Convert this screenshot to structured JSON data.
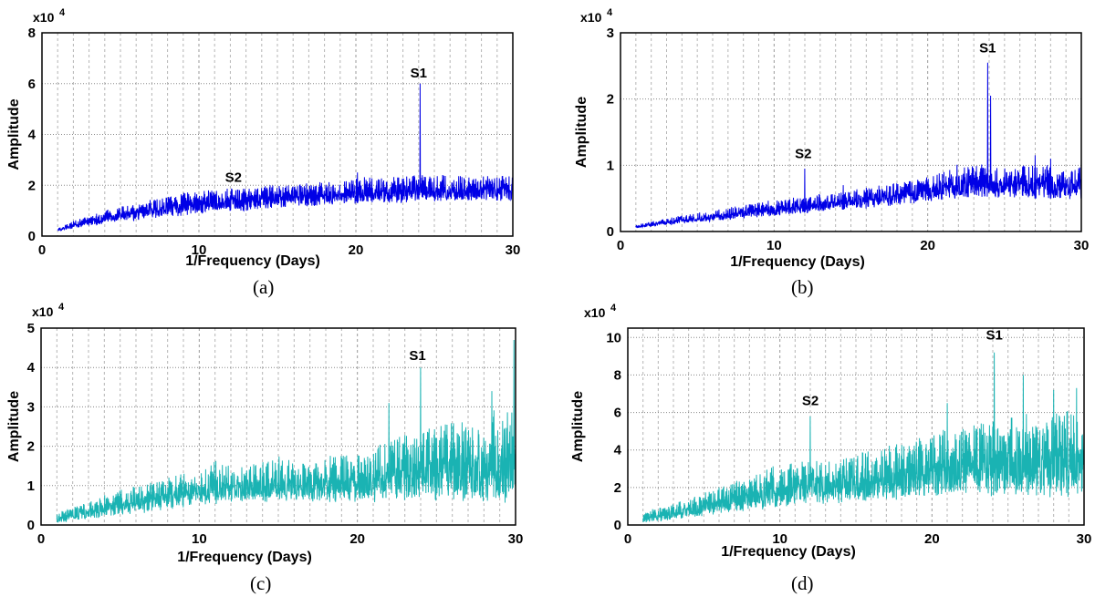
{
  "figure": {
    "captions": [
      "(a)",
      "(b)",
      "(c)",
      "(d)"
    ]
  },
  "chart_data": [
    {
      "type": "line",
      "panel": "(a)",
      "xlabel": "1/Frequency (Days)",
      "ylabel": "Amplitude",
      "exponent_label": "x10",
      "exponent_power": "4",
      "xlim": [
        0,
        30
      ],
      "ylim": [
        0,
        8
      ],
      "xticks": [
        "0",
        "10",
        "20",
        "30"
      ],
      "yticks": [
        "0",
        "2",
        "4",
        "6",
        "8"
      ],
      "grid": true,
      "color": "#0000e6",
      "series": [
        {
          "x_range": [
            1,
            30
          ],
          "x": [
            1,
            2,
            3,
            4,
            5,
            6,
            7,
            8,
            9,
            10,
            11,
            12,
            13,
            14,
            15,
            16,
            17,
            18,
            19,
            20,
            21,
            22,
            23,
            24,
            25,
            26,
            27,
            28,
            29,
            30
          ],
          "y_base": [
            0.2,
            0.3,
            0.4,
            0.5,
            0.6,
            0.6,
            0.7,
            0.8,
            0.8,
            0.9,
            0.9,
            1.0,
            1.0,
            1.1,
            1.1,
            1.2,
            1.2,
            1.2,
            1.3,
            1.3,
            1.3,
            1.3,
            1.3,
            1.4,
            1.4,
            1.4,
            1.4,
            1.4,
            1.4,
            1.4
          ],
          "y_envelope": [
            0.3,
            0.6,
            0.8,
            1.0,
            1.2,
            1.3,
            1.5,
            1.6,
            1.7,
            1.8,
            1.8,
            1.9,
            1.9,
            2.0,
            2.0,
            2.0,
            2.1,
            2.1,
            2.1,
            2.3,
            2.3,
            2.3,
            2.4,
            2.4,
            2.4,
            2.4,
            2.4,
            2.4,
            2.4,
            2.4
          ]
        }
      ],
      "peaks": [
        {
          "label": "S1",
          "x": 24.1,
          "y": 6.0
        },
        {
          "label": "S2",
          "x": 12.0,
          "y": 1.6
        },
        {
          "label": "",
          "x": 20.1,
          "y": 2.5
        },
        {
          "label": "",
          "x": 15.5,
          "y": 1.9
        },
        {
          "label": "",
          "x": 29.0,
          "y": 2.3
        }
      ],
      "annotations": [
        {
          "text": "S1",
          "x": 24.0,
          "y": 6.1
        },
        {
          "text": "S2",
          "x": 12.2,
          "y": 2.0
        }
      ]
    },
    {
      "type": "line",
      "panel": "(b)",
      "xlabel": "1/Frequency (Days)",
      "ylabel": "Amplitude",
      "exponent_label": "x10",
      "exponent_power": "4",
      "xlim": [
        0,
        30
      ],
      "ylim": [
        0,
        3
      ],
      "xticks": [
        "0",
        "10",
        "20",
        "30"
      ],
      "yticks": [
        "0",
        "1",
        "2",
        "3"
      ],
      "grid": true,
      "color": "#0000e6",
      "series": [
        {
          "x_range": [
            1,
            30
          ],
          "x": [
            1,
            2,
            3,
            4,
            5,
            6,
            7,
            8,
            9,
            10,
            11,
            12,
            13,
            14,
            15,
            16,
            17,
            18,
            19,
            20,
            21,
            22,
            23,
            24,
            25,
            26,
            27,
            28,
            29,
            30
          ],
          "y_base": [
            0.05,
            0.08,
            0.1,
            0.12,
            0.14,
            0.16,
            0.18,
            0.2,
            0.22,
            0.24,
            0.26,
            0.28,
            0.3,
            0.32,
            0.34,
            0.36,
            0.38,
            0.4,
            0.42,
            0.45,
            0.48,
            0.5,
            0.52,
            0.5,
            0.5,
            0.5,
            0.5,
            0.5,
            0.5,
            0.5
          ],
          "y_envelope": [
            0.1,
            0.15,
            0.2,
            0.24,
            0.28,
            0.32,
            0.36,
            0.4,
            0.44,
            0.47,
            0.5,
            0.53,
            0.56,
            0.6,
            0.62,
            0.66,
            0.7,
            0.74,
            0.78,
            0.82,
            0.9,
            1.0,
            1.0,
            1.0,
            1.0,
            1.0,
            1.0,
            1.0,
            0.9,
            1.0
          ]
        }
      ],
      "peaks": [
        {
          "label": "S1",
          "x": 23.9,
          "y": 2.55
        },
        {
          "label": "",
          "x": 24.1,
          "y": 2.05
        },
        {
          "label": "S2",
          "x": 12.0,
          "y": 0.95
        },
        {
          "label": "",
          "x": 14.5,
          "y": 0.7
        },
        {
          "label": "",
          "x": 27.0,
          "y": 1.15
        },
        {
          "label": "",
          "x": 28.0,
          "y": 1.1
        },
        {
          "label": "",
          "x": 30.0,
          "y": 1.1
        }
      ],
      "annotations": [
        {
          "text": "S1",
          "x": 23.9,
          "y": 2.65
        },
        {
          "text": "S2",
          "x": 11.9,
          "y": 1.05
        }
      ]
    },
    {
      "type": "line",
      "panel": "(c)",
      "xlabel": "1/Frequency (Days)",
      "ylabel": "Amplitude",
      "exponent_label": "x10",
      "exponent_power": "4",
      "xlim": [
        0,
        30
      ],
      "ylim": [
        0,
        5
      ],
      "xticks": [
        "0",
        "10",
        "20",
        "30"
      ],
      "yticks": [
        "0",
        "1",
        "2",
        "3",
        "4",
        "5"
      ],
      "grid": true,
      "color": "#1ab3b3",
      "series": [
        {
          "x_range": [
            1,
            30
          ],
          "x": [
            1,
            2,
            3,
            4,
            5,
            6,
            7,
            8,
            9,
            10,
            11,
            12,
            13,
            14,
            15,
            16,
            17,
            18,
            19,
            20,
            21,
            22,
            23,
            24,
            25,
            26,
            27,
            28,
            29,
            30
          ],
          "y_base": [
            0.05,
            0.1,
            0.15,
            0.2,
            0.25,
            0.3,
            0.35,
            0.4,
            0.45,
            0.5,
            0.55,
            0.6,
            0.6,
            0.6,
            0.6,
            0.6,
            0.6,
            0.6,
            0.6,
            0.6,
            0.6,
            0.6,
            0.6,
            0.6,
            0.6,
            0.6,
            0.6,
            0.6,
            0.6,
            0.6
          ],
          "y_envelope": [
            0.3,
            0.45,
            0.6,
            0.75,
            0.9,
            1.0,
            1.1,
            1.2,
            1.3,
            1.4,
            1.6,
            1.5,
            1.5,
            1.6,
            1.8,
            1.6,
            1.6,
            1.8,
            1.8,
            1.8,
            1.9,
            2.2,
            2.3,
            2.4,
            2.5,
            2.6,
            2.7,
            2.8,
            2.9,
            3.0
          ]
        }
      ],
      "peaks": [
        {
          "label": "S1",
          "x": 24.0,
          "y": 4.0
        },
        {
          "label": "",
          "x": 29.9,
          "y": 4.7
        },
        {
          "label": "",
          "x": 28.5,
          "y": 3.4
        },
        {
          "label": "",
          "x": 22.0,
          "y": 3.1
        }
      ],
      "annotations": [
        {
          "text": "S1",
          "x": 23.8,
          "y": 4.1
        }
      ]
    },
    {
      "type": "line",
      "panel": "(d)",
      "xlabel": "1/Frequency (Days)",
      "ylabel": "Amplitude",
      "exponent_label": "x10",
      "exponent_power": "4",
      "xlim": [
        0,
        30
      ],
      "ylim": [
        0,
        10.5
      ],
      "xticks": [
        "0",
        "10",
        "20",
        "30"
      ],
      "yticks": [
        "0",
        "2",
        "4",
        "6",
        "8",
        "10"
      ],
      "grid": true,
      "color": "#1ab3b3",
      "series": [
        {
          "x_range": [
            1,
            30
          ],
          "x": [
            1,
            2,
            3,
            4,
            5,
            6,
            7,
            8,
            9,
            10,
            11,
            12,
            13,
            14,
            15,
            16,
            17,
            18,
            19,
            20,
            21,
            22,
            23,
            24,
            25,
            26,
            27,
            28,
            29,
            30
          ],
          "y_base": [
            0.1,
            0.2,
            0.3,
            0.4,
            0.5,
            0.6,
            0.7,
            0.8,
            0.9,
            1.0,
            1.1,
            1.2,
            1.2,
            1.2,
            1.3,
            1.3,
            1.4,
            1.4,
            1.5,
            1.5,
            1.6,
            1.6,
            1.6,
            1.6,
            1.6,
            1.6,
            1.6,
            1.6,
            1.6,
            1.6
          ],
          "y_envelope": [
            0.7,
            0.9,
            1.1,
            1.4,
            1.7,
            2.0,
            2.3,
            2.6,
            2.9,
            3.2,
            3.3,
            3.4,
            3.5,
            3.6,
            3.8,
            4.0,
            4.2,
            4.4,
            4.6,
            4.8,
            5.0,
            5.2,
            5.4,
            5.6,
            5.8,
            6.0,
            6.0,
            6.0,
            6.0,
            6.0
          ]
        }
      ],
      "peaks": [
        {
          "label": "S1",
          "x": 24.1,
          "y": 9.2
        },
        {
          "label": "S2",
          "x": 12.0,
          "y": 5.8
        },
        {
          "label": "",
          "x": 21.0,
          "y": 6.5
        },
        {
          "label": "",
          "x": 26.0,
          "y": 8.0
        },
        {
          "label": "",
          "x": 28.0,
          "y": 7.2
        },
        {
          "label": "",
          "x": 29.5,
          "y": 7.3
        }
      ],
      "annotations": [
        {
          "text": "S1",
          "x": 24.1,
          "y": 9.7
        },
        {
          "text": "S2",
          "x": 12.0,
          "y": 6.2
        }
      ]
    }
  ]
}
